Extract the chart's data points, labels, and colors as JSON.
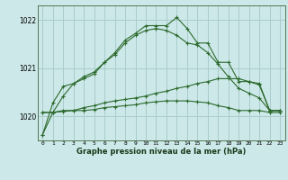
{
  "title": "Graphe pression niveau de la mer (hPa)",
  "bg_color": "#cce8e8",
  "grid_color": "#aacccc",
  "line_color": "#2d6a2d",
  "x": [
    0,
    1,
    2,
    3,
    4,
    5,
    6,
    7,
    8,
    9,
    10,
    11,
    12,
    13,
    14,
    15,
    16,
    17,
    18,
    19,
    20,
    21,
    22,
    23
  ],
  "line1": [
    1019.62,
    1020.28,
    1020.62,
    1020.68,
    1020.82,
    1020.92,
    1021.12,
    1021.32,
    1021.58,
    1021.72,
    1021.88,
    1021.88,
    1021.88,
    1022.05,
    1021.82,
    1021.52,
    1021.52,
    1021.12,
    1021.12,
    1020.72,
    1020.72,
    1020.65,
    1020.12,
    1020.12
  ],
  "line2": [
    1019.62,
    1020.08,
    1020.42,
    1020.68,
    1020.78,
    1020.88,
    1021.12,
    1021.28,
    1021.52,
    1021.68,
    1021.78,
    1021.82,
    1021.78,
    1021.68,
    1021.52,
    1021.48,
    1021.32,
    1021.08,
    1020.82,
    1020.58,
    1020.48,
    1020.38,
    1020.12,
    1020.12
  ],
  "line3": [
    1020.08,
    1020.08,
    1020.12,
    1020.12,
    1020.18,
    1020.22,
    1020.28,
    1020.32,
    1020.35,
    1020.38,
    1020.42,
    1020.48,
    1020.52,
    1020.58,
    1020.62,
    1020.68,
    1020.72,
    1020.78,
    1020.78,
    1020.78,
    1020.72,
    1020.68,
    1020.12,
    1020.12
  ],
  "line4": [
    1020.08,
    1020.08,
    1020.1,
    1020.12,
    1020.12,
    1020.14,
    1020.18,
    1020.2,
    1020.22,
    1020.24,
    1020.28,
    1020.3,
    1020.32,
    1020.32,
    1020.32,
    1020.3,
    1020.28,
    1020.22,
    1020.18,
    1020.12,
    1020.12,
    1020.12,
    1020.08,
    1020.08
  ],
  "ylim": [
    1019.5,
    1022.3
  ],
  "yticks": [
    1020,
    1021,
    1022
  ],
  "xlim": [
    -0.5,
    23.5
  ],
  "xtick_labels": [
    "0",
    "1",
    "2",
    "3",
    "4",
    "5",
    "6",
    "7",
    "8",
    "9",
    "10",
    "11",
    "12",
    "13",
    "14",
    "15",
    "16",
    "17",
    "18",
    "19",
    "20",
    "21",
    "22",
    "23"
  ]
}
